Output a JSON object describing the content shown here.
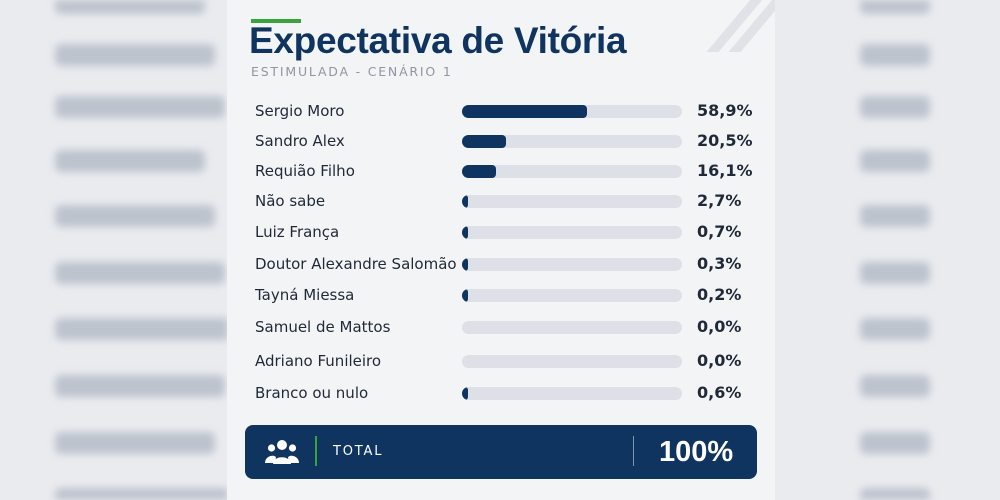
{
  "header": {
    "title": "Expectativa de Vitória",
    "subtitle": "ESTIMULADA - CENÁRIO 1"
  },
  "colors": {
    "bar": "#0f3460",
    "track": "#dde0e6",
    "accent": "#3aa33e"
  },
  "chart_data": {
    "type": "bar",
    "orientation": "horizontal",
    "categories": [
      "Sergio Moro",
      "Sandro Alex",
      "Requião Filho",
      "Não sabe",
      "Luiz França",
      "Doutor Alexandre Salomão",
      "Tayná Miessa",
      "Samuel de Mattos",
      "Adriano Funileiro",
      "Branco ou nulo"
    ],
    "values": [
      58.9,
      20.5,
      16.1,
      2.7,
      0.7,
      0.3,
      0.2,
      0.0,
      0.0,
      0.6
    ],
    "value_labels": [
      "58,9%",
      "20,5%",
      "16,1%",
      "2,7%",
      "0,7%",
      "0,3%",
      "0,2%",
      "0,0%",
      "0,0%",
      "0,6%"
    ],
    "xlim": [
      0,
      100
    ],
    "grid": false,
    "legend": "none"
  },
  "total": {
    "icon": "people-group-icon",
    "label": "TOTAL",
    "value": "100%"
  }
}
